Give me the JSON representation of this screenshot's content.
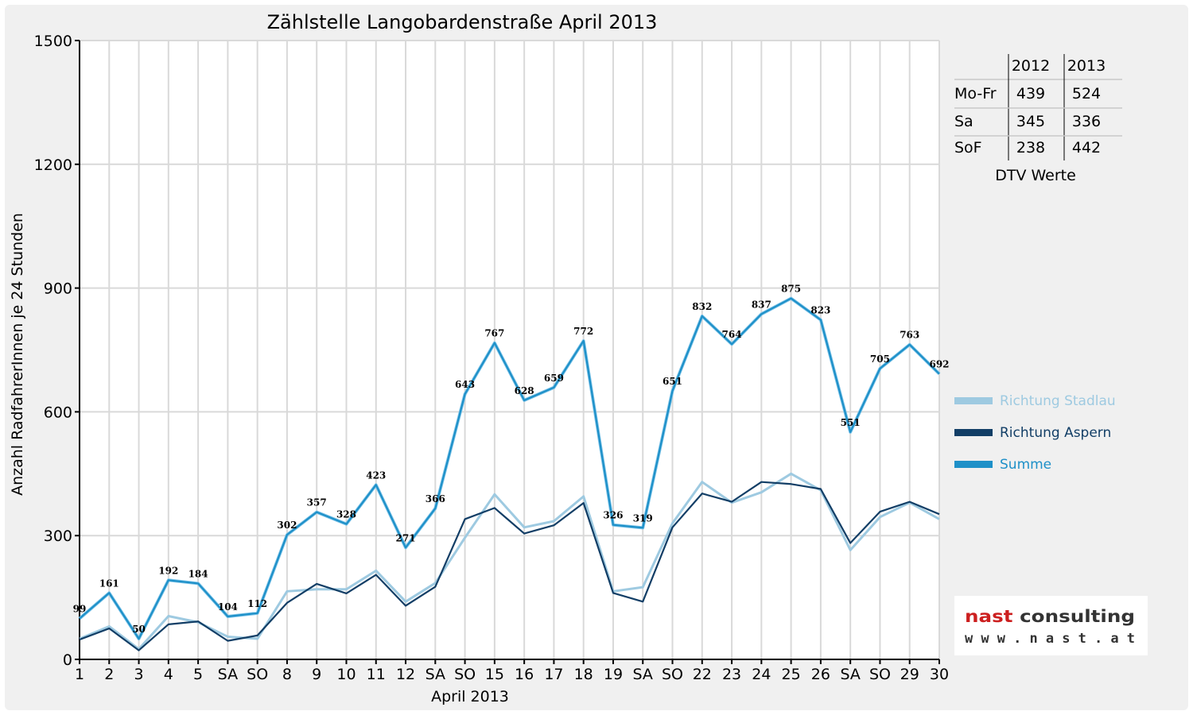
{
  "chart_data": {
    "type": "line",
    "title": "Zählstelle Langobardenstraße April 2013",
    "xlabel": "April 2013",
    "ylabel": "Anzahl RadfahrerInnen je 24 Stunden",
    "ylim": [
      0,
      1500
    ],
    "yticks": [
      0,
      300,
      600,
      900,
      1200,
      1500
    ],
    "grid": true,
    "legend_position": "right",
    "categories": [
      "1",
      "2",
      "3",
      "4",
      "5",
      "SA",
      "SO",
      "8",
      "9",
      "10",
      "11",
      "12",
      "SA",
      "SO",
      "15",
      "16",
      "17",
      "18",
      "19",
      "SA",
      "SO",
      "22",
      "23",
      "24",
      "25",
      "26",
      "SA",
      "SO",
      "29",
      "30"
    ],
    "holiday_categories": [
      0,
      6,
      13,
      20,
      27
    ],
    "series": [
      {
        "name": "Richtung Stadlau",
        "color": "#9ecae1",
        "values": [
          50,
          80,
          25,
          105,
          90,
          55,
          50,
          165,
          170,
          170,
          215,
          140,
          185,
          295,
          400,
          320,
          335,
          395,
          165,
          175,
          330,
          430,
          380,
          405,
          450,
          410,
          265,
          345,
          380,
          340
        ]
      },
      {
        "name": "Richtung Aspern",
        "color": "#123e66",
        "values": [
          48,
          75,
          22,
          85,
          92,
          45,
          58,
          137,
          183,
          160,
          205,
          130,
          176,
          340,
          367,
          305,
          325,
          379,
          161,
          140,
          320,
          402,
          382,
          430,
          425,
          413,
          282,
          358,
          382,
          352
        ]
      },
      {
        "name": "Summe",
        "color": "#1e90c8",
        "values": [
          99,
          161,
          50,
          192,
          184,
          104,
          112,
          302,
          357,
          328,
          423,
          271,
          366,
          643,
          767,
          628,
          659,
          772,
          326,
          319,
          651,
          832,
          764,
          837,
          875,
          823,
          551,
          705,
          763,
          692
        ]
      }
    ],
    "data_labels": [
      99,
      161,
      50,
      192,
      184,
      104,
      112,
      302,
      357,
      328,
      423,
      271,
      366,
      643,
      767,
      628,
      659,
      772,
      326,
      319,
      651,
      832,
      764,
      837,
      875,
      823,
      551,
      705,
      763,
      692
    ]
  },
  "dtv_table": {
    "caption": "DTV Werte",
    "columns": [
      "2012",
      "2013"
    ],
    "rows": [
      {
        "label": "Mo-Fr",
        "values": [
          "439",
          "524"
        ]
      },
      {
        "label": "Sa",
        "values": [
          "345",
          "336"
        ]
      },
      {
        "label": "SoF",
        "values": [
          "238",
          "442"
        ]
      }
    ]
  },
  "logo": {
    "name": "nast consulting",
    "url": "www.nast.at"
  },
  "colors": {
    "holiday_tick": "#ff0000",
    "logo_red": "#cc1f1f",
    "logo_gray": "#333333"
  }
}
